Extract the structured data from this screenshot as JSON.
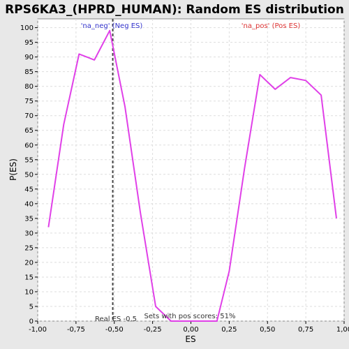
{
  "chart_data": {
    "type": "line",
    "title": "RPS6KA3_(HPRD_HUMAN): Random ES distribution",
    "xlabel": "ES",
    "ylabel": "P(ES)",
    "xlim": [
      -1.0,
      1.0
    ],
    "ylim": [
      0,
      103
    ],
    "x_ticks": [
      "-1,00",
      "-0,75",
      "-0,50",
      "-0,25",
      "0,00",
      "0,25",
      "0,50",
      "0,75",
      "1,00"
    ],
    "x_tick_values": [
      -1.0,
      -0.75,
      -0.5,
      -0.25,
      0.0,
      0.25,
      0.5,
      0.75,
      1.0
    ],
    "y_ticks": [
      "0",
      "5",
      "10",
      "15",
      "20",
      "25",
      "30",
      "35",
      "40",
      "45",
      "50",
      "55",
      "60",
      "65",
      "70",
      "75",
      "80",
      "85",
      "90",
      "95",
      "100"
    ],
    "y_tick_values": [
      0,
      5,
      10,
      15,
      20,
      25,
      30,
      35,
      40,
      45,
      50,
      55,
      60,
      65,
      70,
      75,
      80,
      85,
      90,
      95,
      100
    ],
    "grid": true,
    "series": [
      {
        "x": [
          -0.93,
          -0.83,
          -0.73,
          -0.63,
          -0.53,
          -0.43,
          -0.33,
          -0.23,
          -0.13,
          -0.03,
          0.07,
          0.17,
          0.25,
          0.35,
          0.45,
          0.55,
          0.65,
          0.75,
          0.85,
          0.95
        ],
        "values": [
          32,
          67,
          91,
          89,
          99,
          73,
          37,
          5,
          0,
          0,
          0,
          0,
          17,
          52,
          84,
          79,
          83,
          82,
          77,
          35
        ],
        "color": "#e040e8"
      }
    ],
    "reference_line": {
      "x": -0.51,
      "label": "Real ES -0,5"
    },
    "annotations": {
      "neg_label": "'na_neg' (Neg ES)",
      "pos_label": "'na_pos' (Pos ES)",
      "sets_label": "Sets with pos scores: 51%"
    },
    "colors": {
      "neg": "#3333cc",
      "pos": "#dd3333",
      "grid": "#dddddd",
      "plot_bg": "#ffffff",
      "page_bg": "#e8e8e8"
    }
  }
}
